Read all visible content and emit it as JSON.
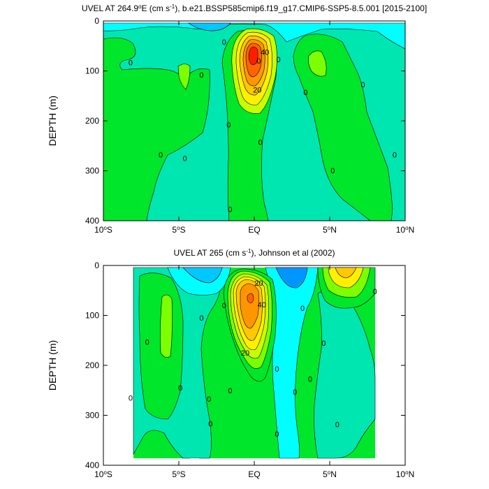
{
  "colors": {
    "cyan": "#00ffff",
    "aqua_light": "#00f2d0",
    "turquoise": "#00e6b0",
    "green_light": "#40ff80",
    "green": "#00e62b",
    "lime": "#7cff00",
    "yellow_green": "#c8ff00",
    "yellow": "#fff000",
    "gold": "#ffc800",
    "orange": "#ff9600",
    "orange_red": "#ff6400",
    "red": "#ff1e00",
    "blue_light": "#00c8ff",
    "blue": "#0096ff",
    "missing": "#ffffff"
  },
  "chart_data": [
    {
      "type": "contour",
      "title_prefix": "UVEL AT 264.9",
      "title_sup_deg": "o",
      "title_mid": "E (cm s",
      "title_sup_unit": "-1",
      "title_suffix": "), b.e21.BSSP585cmip6.f19_g17.CMIP6-SSP5-8.5.001 [2015-2100]",
      "ylabel": "DEPTH (m)",
      "xlim": [
        -10,
        10
      ],
      "ylim": [
        400,
        0
      ],
      "x_ticks": [
        {
          "value": -10,
          "num": "10",
          "deg": "o",
          "hemi": "S"
        },
        {
          "value": -5,
          "num": "5",
          "deg": "o",
          "hemi": "S"
        },
        {
          "value": 0,
          "num": "EQ",
          "deg": "",
          "hemi": ""
        },
        {
          "value": 5,
          "num": "5",
          "deg": "o",
          "hemi": "N"
        },
        {
          "value": 10,
          "num": "10",
          "deg": "o",
          "hemi": "N"
        }
      ],
      "y_ticks": [
        0,
        100,
        200,
        300,
        400
      ],
      "data_xlim": [
        -10,
        10
      ],
      "data_ylim": [
        5,
        400
      ],
      "contour_labels": [
        {
          "x": 0.7,
          "y": 62,
          "text": "40"
        },
        {
          "x": 0.2,
          "y": 138,
          "text": "20"
        },
        {
          "x": -8.2,
          "y": 83,
          "text": "0"
        },
        {
          "x": -3.5,
          "y": 108,
          "text": "0"
        },
        {
          "x": -2.0,
          "y": 42,
          "text": "0"
        },
        {
          "x": 0.3,
          "y": 80,
          "text": "0"
        },
        {
          "x": 3.4,
          "y": 143,
          "text": "0"
        },
        {
          "x": 1.6,
          "y": 77,
          "text": "0"
        },
        {
          "x": -1.7,
          "y": 208,
          "text": "0"
        },
        {
          "x": 0.4,
          "y": 243,
          "text": "0"
        },
        {
          "x": -6.2,
          "y": 268,
          "text": "0"
        },
        {
          "x": -4.6,
          "y": 275,
          "text": "0"
        },
        {
          "x": -1.6,
          "y": 377,
          "text": "0"
        },
        {
          "x": 5.2,
          "y": 299,
          "text": "0"
        },
        {
          "x": 7.2,
          "y": 127,
          "text": "0"
        },
        {
          "x": 9.3,
          "y": 268,
          "text": "0"
        }
      ]
    },
    {
      "type": "contour",
      "title_prefix": "UVEL AT 265 (cm s",
      "title_sup_unit": "-1",
      "title_suffix": "), Johnson et al (2002)",
      "ylabel": "DEPTH (m)",
      "xlim": [
        -10,
        10
      ],
      "ylim": [
        400,
        0
      ],
      "x_ticks": [
        {
          "value": -10,
          "num": "10",
          "deg": "o",
          "hemi": "S"
        },
        {
          "value": -5,
          "num": "5",
          "deg": "o",
          "hemi": "S"
        },
        {
          "value": 0,
          "num": "EQ",
          "deg": "",
          "hemi": ""
        },
        {
          "value": 5,
          "num": "5",
          "deg": "o",
          "hemi": "N"
        },
        {
          "value": 10,
          "num": "10",
          "deg": "o",
          "hemi": "N"
        }
      ],
      "y_ticks": [
        0,
        100,
        200,
        300,
        400
      ],
      "data_xlim": [
        -8,
        8
      ],
      "data_ylim": [
        5,
        385
      ],
      "contour_labels": [
        {
          "x": 0.3,
          "y": 35,
          "text": "20"
        },
        {
          "x": 0.5,
          "y": 78,
          "text": "40"
        },
        {
          "x": -0.6,
          "y": 175,
          "text": "20"
        },
        {
          "x": -7.1,
          "y": 153,
          "text": "0"
        },
        {
          "x": -3.5,
          "y": 105,
          "text": "0"
        },
        {
          "x": -2.0,
          "y": 80,
          "text": "0"
        },
        {
          "x": 3.2,
          "y": 85,
          "text": "0"
        },
        {
          "x": 4.6,
          "y": 155,
          "text": "0"
        },
        {
          "x": 8.0,
          "y": 52,
          "text": "0"
        },
        {
          "x": 1.5,
          "y": 207,
          "text": "0"
        },
        {
          "x": 3.7,
          "y": 227,
          "text": "0"
        },
        {
          "x": -4.9,
          "y": 245,
          "text": "0"
        },
        {
          "x": -1.6,
          "y": 250,
          "text": "0"
        },
        {
          "x": 2.7,
          "y": 253,
          "text": "0"
        },
        {
          "x": -8.2,
          "y": 265,
          "text": "0"
        },
        {
          "x": -3.0,
          "y": 267,
          "text": "0"
        },
        {
          "x": -2.9,
          "y": 317,
          "text": "0"
        },
        {
          "x": 5.5,
          "y": 318,
          "text": "0"
        },
        {
          "x": 1.5,
          "y": 337,
          "text": "0"
        }
      ]
    }
  ]
}
